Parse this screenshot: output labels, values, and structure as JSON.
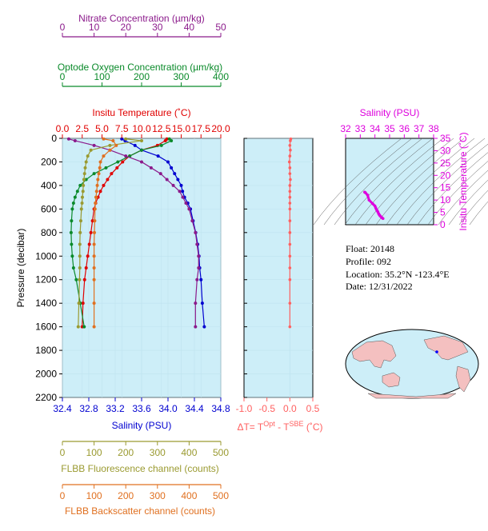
{
  "colors": {
    "nitrate": "#8b1a8b",
    "oxygen": "#0a8a2a",
    "temperature": "#e00000",
    "salinity": "#0000d0",
    "fluorescence": "#9a9a30",
    "backscatter": "#e07020",
    "delta_t": "#ff6060",
    "ts_axis": "#dd00dd",
    "panel_bg": "#cdeef8"
  },
  "info": {
    "float": "Float:  20148",
    "profile": "Profile:  092",
    "location": "Location:  35.2°N  -123.4°E",
    "date": "Date:  12/31/2022"
  },
  "chart_data": [
    {
      "type": "line",
      "panel": "profiles",
      "ylabel": "Pressure (decibar)",
      "ylim": [
        2200,
        0
      ],
      "yticks": [
        "0",
        "200",
        "400",
        "600",
        "800",
        "1000",
        "1200",
        "1400",
        "1600",
        "1800",
        "2000",
        "2200"
      ],
      "axes": {
        "nitrate": {
          "label": "Nitrate Concentration (µm/kg)",
          "ticks": [
            "0",
            "10",
            "20",
            "30",
            "40",
            "50"
          ],
          "range": [
            0,
            50
          ]
        },
        "oxygen": {
          "label": "Optode Oxygen Concentration (µm/kg)",
          "ticks": [
            "0",
            "100",
            "200",
            "300",
            "400"
          ],
          "range": [
            0,
            400
          ]
        },
        "temperature": {
          "label": "Insitu Temperature (˚C)",
          "ticks": [
            "0.0",
            "2.5",
            "5.0",
            "7.5",
            "10.0",
            "12.5",
            "15.0",
            "17.5",
            "20.0"
          ],
          "range": [
            0,
            20
          ]
        },
        "salinity": {
          "label": "Salinity (PSU)",
          "ticks": [
            "32.4",
            "32.8",
            "33.2",
            "33.6",
            "34.0",
            "34.4",
            "34.8"
          ],
          "range": [
            32.4,
            34.8
          ]
        },
        "fluorescence": {
          "label": "FLBB Fluorescence channel (counts)",
          "ticks": [
            "0",
            "100",
            "200",
            "300",
            "400",
            "500"
          ],
          "range": [
            0,
            500
          ]
        },
        "backscatter": {
          "label": "FLBB Backscatter channel (counts)",
          "ticks": [
            "0",
            "100",
            "200",
            "300",
            "400",
            "500"
          ],
          "range": [
            0,
            500
          ]
        }
      },
      "series": [
        {
          "name": "temperature",
          "axis": "temperature",
          "x": [
            13.2,
            13.0,
            12.0,
            10.0,
            8.5,
            7.6,
            6.9,
            6.2,
            5.7,
            5.2,
            4.8,
            4.5,
            4.2,
            4.0,
            3.8,
            3.6,
            3.4,
            3.2,
            3.0,
            2.8,
            2.6,
            2.5
          ],
          "y": [
            5,
            20,
            60,
            100,
            150,
            200,
            250,
            300,
            350,
            400,
            450,
            500,
            550,
            600,
            700,
            800,
            900,
            1000,
            1100,
            1200,
            1400,
            1600
          ]
        },
        {
          "name": "salinity",
          "axis": "salinity",
          "x": [
            33.3,
            33.35,
            33.5,
            33.6,
            33.85,
            34.0,
            34.05,
            34.1,
            34.15,
            34.2,
            34.22,
            34.25,
            34.3,
            34.34,
            34.38,
            34.42,
            34.45,
            34.47,
            34.48,
            34.5,
            34.52,
            34.55
          ],
          "y": [
            5,
            20,
            60,
            100,
            150,
            200,
            250,
            300,
            350,
            400,
            450,
            500,
            550,
            600,
            700,
            800,
            900,
            1000,
            1100,
            1200,
            1400,
            1600
          ]
        },
        {
          "name": "oxygen",
          "axis": "oxygen",
          "x": [
            270,
            275,
            250,
            200,
            170,
            140,
            110,
            80,
            60,
            45,
            38,
            32,
            28,
            25,
            23,
            22,
            23,
            25,
            28,
            35,
            45,
            55
          ],
          "y": [
            5,
            20,
            60,
            100,
            150,
            200,
            250,
            300,
            350,
            400,
            450,
            500,
            550,
            600,
            700,
            800,
            900,
            1000,
            1100,
            1200,
            1400,
            1600
          ]
        },
        {
          "name": "nitrate",
          "axis": "nitrate",
          "x": [
            2,
            4,
            10,
            15,
            20,
            25,
            28,
            31,
            33,
            35,
            37,
            38,
            39,
            40,
            41,
            42,
            42.5,
            43,
            43,
            42.5,
            42,
            42
          ],
          "y": [
            5,
            20,
            60,
            100,
            150,
            200,
            250,
            300,
            350,
            400,
            450,
            500,
            550,
            600,
            700,
            800,
            900,
            1000,
            1100,
            1200,
            1400,
            1600
          ]
        },
        {
          "name": "fluorescence",
          "axis": "fluorescence",
          "x": [
            200,
            250,
            150,
            90,
            80,
            75,
            72,
            70,
            68,
            66,
            65,
            63,
            62,
            60,
            58,
            56,
            55,
            55,
            55,
            54,
            52,
            50
          ],
          "y": [
            5,
            20,
            60,
            100,
            150,
            200,
            250,
            300,
            350,
            400,
            450,
            500,
            550,
            600,
            700,
            800,
            900,
            1000,
            1100,
            1200,
            1400,
            1600
          ]
        },
        {
          "name": "backscatter",
          "axis": "backscatter",
          "x": [
            130,
            160,
            170,
            150,
            130,
            120,
            118,
            115,
            112,
            110,
            108,
            106,
            104,
            103,
            102,
            101,
            100,
            100,
            100,
            100,
            100,
            100
          ],
          "y": [
            5,
            20,
            60,
            100,
            150,
            200,
            250,
            300,
            350,
            400,
            450,
            500,
            550,
            600,
            700,
            800,
            900,
            1000,
            1100,
            1200,
            1400,
            1600
          ]
        }
      ]
    },
    {
      "type": "line",
      "panel": "delta_t",
      "xlabel": "ΔT= T",
      "xlabel_sup1": "Opt",
      "xlabel_mid": " - T",
      "xlabel_sup2": "SBE",
      "xlabel_end": " (˚C)",
      "xticks": [
        "-1.0",
        "-0.5",
        "0.0",
        "0.5"
      ],
      "xlim": [
        -1.0,
        0.5
      ],
      "ylim": [
        2200,
        0
      ],
      "series": [
        {
          "name": "delta_t",
          "x": [
            0.02,
            0.01,
            0.0,
            0.01,
            0.0,
            -0.01,
            0.0,
            0.0,
            0.01,
            0.0,
            0.0,
            0.0,
            0.0,
            0.0,
            0.0,
            0.0,
            0.0,
            0.0,
            0.0,
            0.0,
            0.0,
            0.0
          ],
          "y": [
            5,
            20,
            60,
            100,
            150,
            200,
            250,
            300,
            350,
            400,
            450,
            500,
            550,
            600,
            700,
            800,
            900,
            1000,
            1100,
            1200,
            1400,
            1600
          ]
        }
      ]
    },
    {
      "type": "scatter",
      "panel": "ts",
      "xlabel": "Salinity (PSU)",
      "ylabel": "Insitu Temperature (˚C)",
      "xticks": [
        "32",
        "33",
        "34",
        "35",
        "36",
        "37",
        "38"
      ],
      "yticks": [
        "0",
        "5",
        "10",
        "15",
        "20",
        "25",
        "30",
        "35"
      ],
      "xlim": [
        32,
        38
      ],
      "ylim": [
        0,
        35
      ],
      "series": [
        {
          "name": "ts",
          "x": [
            33.3,
            33.35,
            33.5,
            33.6,
            33.85,
            34.0,
            34.05,
            34.1,
            34.15,
            34.2,
            34.25,
            34.3,
            34.35,
            34.42,
            34.48,
            34.55
          ],
          "y": [
            13.2,
            13.0,
            12.0,
            10.0,
            8.5,
            7.6,
            6.9,
            6.2,
            5.7,
            5.2,
            4.5,
            4.0,
            3.6,
            3.2,
            2.8,
            2.5
          ]
        }
      ]
    }
  ]
}
